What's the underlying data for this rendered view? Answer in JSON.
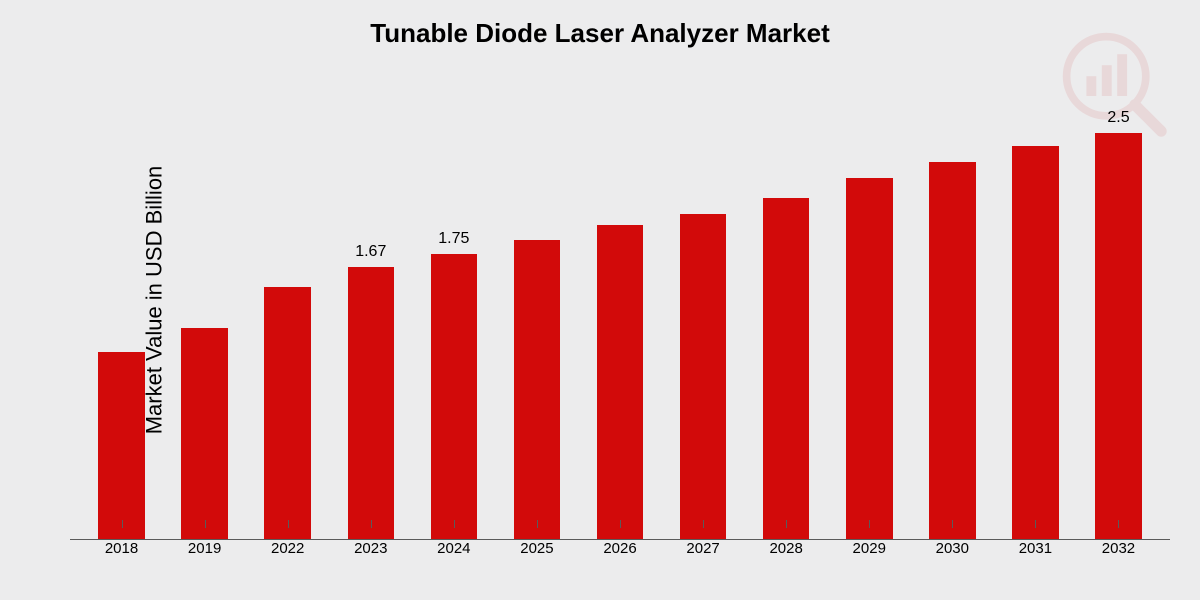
{
  "chart": {
    "type": "bar",
    "title": "Tunable Diode Laser Analyzer Market",
    "title_fontsize": 26,
    "title_fontweight": 600,
    "ylabel": "Market Value in USD Billion",
    "ylabel_fontsize": 22,
    "background_color": "#ececed",
    "bar_color": "#d20a0a",
    "axis_color": "#5a5a5a",
    "text_color": "#000000",
    "ylim": [
      0,
      2.7
    ],
    "bar_width_ratio": 0.56,
    "categories": [
      "2018",
      "2019",
      "2022",
      "2023",
      "2024",
      "2025",
      "2026",
      "2027",
      "2028",
      "2029",
      "2030",
      "2031",
      "2032"
    ],
    "values": [
      1.15,
      1.3,
      1.55,
      1.67,
      1.75,
      1.84,
      1.93,
      2.0,
      2.1,
      2.22,
      2.32,
      2.42,
      2.5
    ],
    "value_labels": [
      "",
      "",
      "",
      "1.67",
      "1.75",
      "",
      "",
      "",
      "",
      "",
      "",
      "",
      "2.5"
    ],
    "value_label_fontsize": 16,
    "xtick_fontsize": 15,
    "watermark_color": "#c00000"
  }
}
